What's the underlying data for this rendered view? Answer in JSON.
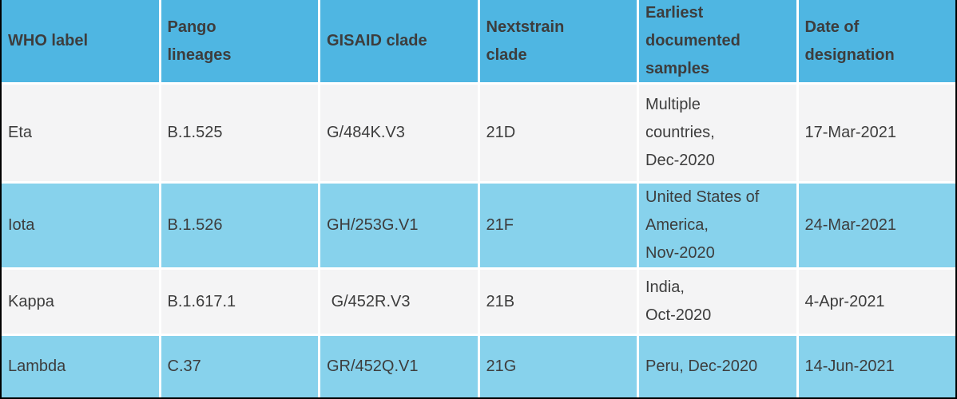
{
  "theme": {
    "header-bg": "#4FB6E2",
    "row-blue": "#87D2EC",
    "row-gray": "#F4F4F5",
    "gap-color": "#FFFFFF",
    "text-color": "#3D3D3D",
    "frame-border": "#000000"
  },
  "table": {
    "columns": [
      {
        "label": "WHO label"
      },
      {
        "label": "Pango\nlineages"
      },
      {
        "label": "GISAID clade"
      },
      {
        "label": "Nextstrain\nclade"
      },
      {
        "label": "Earliest\ndocumented\nsamples"
      },
      {
        "label": "Date of\ndesignation"
      }
    ],
    "rows": [
      {
        "who_label": "Eta",
        "pango_lineages": "B.1.525",
        "gisaid_clade": "G/484K.V3",
        "nextstrain_clade": "21D",
        "earliest_documented_samples": "Multiple\ncountries,\nDec-2020",
        "date_of_designation": "17-Mar-2021"
      },
      {
        "who_label": "Iota",
        "pango_lineages": "B.1.526",
        "gisaid_clade": "GH/253G.V1",
        "nextstrain_clade": "21F",
        "earliest_documented_samples": "United States of\nAmerica,\nNov-2020",
        "date_of_designation": "24-Mar-2021"
      },
      {
        "who_label": "Kappa",
        "pango_lineages": "B.1.617.1",
        "gisaid_clade": " G/452R.V3",
        "nextstrain_clade": "21B",
        "earliest_documented_samples": "India,\nOct-2020",
        "date_of_designation": "4-Apr-2021"
      },
      {
        "who_label": "Lambda",
        "pango_lineages": "C.37",
        "gisaid_clade": "GR/452Q.V1",
        "nextstrain_clade": "21G",
        "earliest_documented_samples": "Peru, Dec-2020",
        "date_of_designation": "14-Jun-2021"
      }
    ]
  }
}
